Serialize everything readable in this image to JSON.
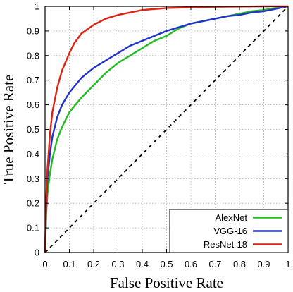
{
  "chart_data": {
    "type": "line",
    "title": "",
    "xlabel": "False Positive Rate",
    "ylabel": "True Positive Rate",
    "xlim": [
      0,
      1
    ],
    "ylim": [
      0,
      1
    ],
    "x_ticks": [
      "0",
      "0.1",
      "0.2",
      "0.3",
      "0.4",
      "0.5",
      "0.6",
      "0.7",
      "0.8",
      "0.9",
      "1"
    ],
    "y_ticks": [
      "0",
      "0.1",
      "0.2",
      "0.3",
      "0.4",
      "0.5",
      "0.6",
      "0.7",
      "0.8",
      "0.9",
      "1"
    ],
    "grid": true,
    "legend_position": "bottom-right",
    "series": [
      {
        "name": "AlexNet",
        "color": "#22bb22",
        "x": [
          0,
          0.005,
          0.01,
          0.02,
          0.03,
          0.05,
          0.07,
          0.1,
          0.15,
          0.2,
          0.25,
          0.3,
          0.35,
          0.4,
          0.45,
          0.5,
          0.55,
          0.6,
          0.65,
          0.7,
          0.75,
          0.8,
          0.85,
          0.9,
          0.95,
          1.0
        ],
        "y": [
          0,
          0.16,
          0.24,
          0.32,
          0.38,
          0.46,
          0.51,
          0.57,
          0.63,
          0.68,
          0.73,
          0.77,
          0.8,
          0.83,
          0.86,
          0.88,
          0.91,
          0.93,
          0.94,
          0.95,
          0.96,
          0.97,
          0.98,
          0.985,
          0.993,
          1.0
        ]
      },
      {
        "name": "VGG-16",
        "color": "#2233cc",
        "x": [
          0,
          0.005,
          0.01,
          0.02,
          0.03,
          0.05,
          0.07,
          0.1,
          0.15,
          0.2,
          0.25,
          0.3,
          0.35,
          0.4,
          0.45,
          0.5,
          0.55,
          0.6,
          0.65,
          0.7,
          0.75,
          0.8,
          0.85,
          0.9,
          0.95,
          1.0
        ],
        "y": [
          0,
          0.2,
          0.3,
          0.4,
          0.47,
          0.55,
          0.6,
          0.65,
          0.71,
          0.75,
          0.78,
          0.81,
          0.84,
          0.86,
          0.88,
          0.9,
          0.915,
          0.93,
          0.94,
          0.95,
          0.96,
          0.965,
          0.975,
          0.98,
          0.99,
          1.0
        ]
      },
      {
        "name": "ResNet-18",
        "color": "#dd2211",
        "x": [
          0,
          0.005,
          0.01,
          0.02,
          0.03,
          0.05,
          0.07,
          0.1,
          0.12,
          0.15,
          0.2,
          0.25,
          0.3,
          0.35,
          0.4,
          0.5,
          0.6,
          0.7,
          0.8,
          0.9,
          1.0
        ],
        "y": [
          0,
          0.23,
          0.34,
          0.48,
          0.57,
          0.67,
          0.74,
          0.81,
          0.85,
          0.89,
          0.925,
          0.95,
          0.965,
          0.975,
          0.985,
          0.993,
          0.996,
          0.998,
          0.999,
          1.0,
          1.0
        ]
      },
      {
        "name": "",
        "color": "#000000",
        "dashed": true,
        "x": [
          0,
          1
        ],
        "y": [
          0,
          1
        ]
      }
    ]
  }
}
